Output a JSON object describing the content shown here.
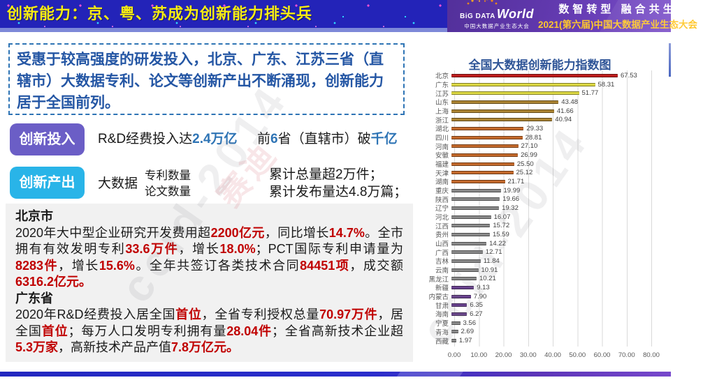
{
  "header": {
    "title": "创新能力：京、粤、苏成为创新能力排头兵",
    "logo": {
      "big": "BiG DATA",
      "world": "World",
      "sub": "中国大数据产业生态大会"
    },
    "slogan_line1": "数智转型 融合共生",
    "slogan_line2": "2021(第六届)中国大数据产业生态大会"
  },
  "intro": {
    "text": "受惠于较高强度的研发投入，北京、广东、江苏三省（直辖市）大数据专利、论文等创新产出不断涌现，创新能力居于全国前列。"
  },
  "invest": {
    "badge": "创新投入",
    "line1": [
      {
        "t": "R&D经费投入达"
      },
      {
        "t": "2.4万亿",
        "c": "hl"
      }
    ],
    "line2": [
      {
        "t": "前"
      },
      {
        "t": "6",
        "c": "hl"
      },
      {
        "t": "省（直辖市）破"
      },
      {
        "t": "千亿",
        "c": "hl"
      }
    ]
  },
  "output": {
    "badge": "创新产出",
    "prefix": "大数据",
    "items": [
      "专利数量",
      "论文数量"
    ],
    "results": [
      "累计总量超2万件；",
      "累计发布量达4.8万篇；"
    ]
  },
  "detail": {
    "beijing_title": "北京市",
    "beijing": [
      {
        "t": "2020年大中型企业研究开发费用超"
      },
      {
        "t": "2200亿元",
        "c": "red"
      },
      {
        "t": "，同比增长"
      },
      {
        "t": "14.7%",
        "c": "red"
      },
      {
        "t": "。全市拥有有效发明专利"
      },
      {
        "t": "33.6万件",
        "c": "red"
      },
      {
        "t": "，增长"
      },
      {
        "t": "18.0%",
        "c": "red"
      },
      {
        "t": "；PCT国际专利申请量为"
      },
      {
        "t": "8283件",
        "c": "red"
      },
      {
        "t": "，增长"
      },
      {
        "t": "15.6%",
        "c": "red"
      },
      {
        "t": "。全年共签订各类技术合同"
      },
      {
        "t": "84451项",
        "c": "red"
      },
      {
        "t": "，成交额"
      },
      {
        "t": "6316.2亿元。",
        "c": "red"
      }
    ],
    "guangdong_title": "广东省",
    "guangdong": [
      {
        "t": "2020年R&D经费投入居全国"
      },
      {
        "t": "首位",
        "c": "red"
      },
      {
        "t": "，全省专利授权总量"
      },
      {
        "t": "70.97万件",
        "c": "red"
      },
      {
        "t": "，居全国"
      },
      {
        "t": "首位",
        "c": "red"
      },
      {
        "t": "；每万人口发明专利拥有量"
      },
      {
        "t": "28.04件",
        "c": "red"
      },
      {
        "t": "；全省高新技术企业超"
      },
      {
        "t": "5.3万家",
        "c": "red"
      },
      {
        "t": "，高新技术产品产值"
      },
      {
        "t": "7.8万亿元。",
        "c": "red"
      }
    ]
  },
  "watermark": {
    "text": "ccid-2014",
    "brand": "赛迪"
  },
  "chart_data": {
    "type": "bar",
    "orientation": "horizontal",
    "title": "全国大数据创新能力指数图",
    "categories": [
      "北京",
      "广东",
      "江苏",
      "山东",
      "上海",
      "浙江",
      "湖北",
      "四川",
      "河南",
      "安徽",
      "福建",
      "天津",
      "湖南",
      "重庆",
      "陕西",
      "辽宁",
      "河北",
      "江西",
      "贵州",
      "山西",
      "广西",
      "吉林",
      "云南",
      "黑龙江",
      "新疆",
      "内蒙古",
      "甘肃",
      "海南",
      "宁夏",
      "青海",
      "西藏"
    ],
    "values": [
      67.53,
      58.31,
      51.77,
      43.48,
      41.66,
      40.94,
      29.33,
      28.81,
      27.1,
      26.99,
      25.5,
      25.12,
      21.71,
      19.99,
      19.66,
      19.32,
      16.07,
      15.72,
      15.59,
      14.22,
      12.71,
      11.84,
      10.91,
      10.21,
      9.13,
      7.9,
      6.35,
      6.27,
      3.56,
      2.69,
      1.97
    ],
    "value_labels": [
      "67.53",
      "58.31",
      "51.77",
      "43.48",
      "41.66",
      "40.94",
      "29.33",
      "28.81",
      "27.10",
      "26.99",
      "25.50",
      "25.12",
      "21.71",
      "19.99",
      "19.66",
      "19.32",
      "16.07",
      "15.72",
      "15.59",
      "14.22",
      "12.71",
      "11.84",
      "10.91",
      "10.21",
      "9.13",
      "7.90",
      "6.35",
      "6.27",
      "3.56",
      "2.69",
      "1.97"
    ],
    "colors": [
      "red",
      "yellow",
      "yellow",
      "gold",
      "gold",
      "gold",
      "orange",
      "orange",
      "orange",
      "orange",
      "orange",
      "orange",
      "orange",
      "grey",
      "grey",
      "grey",
      "grey",
      "grey",
      "grey",
      "grey",
      "grey",
      "grey",
      "grey",
      "grey",
      "purple",
      "purple",
      "purple",
      "purple",
      "grey",
      "grey",
      "grey"
    ],
    "palette": {
      "red": "#c00000",
      "yellow": "#e3de2e",
      "gold": "#a8791a",
      "orange": "#c55a11",
      "grey": "#808080",
      "purple": "#5b2c86"
    },
    "xticks": [
      "0.00",
      "10.00",
      "20.00",
      "30.00",
      "40.00",
      "50.00",
      "60.00",
      "70.00",
      "80.00"
    ],
    "xlim": [
      0,
      80
    ],
    "grid": true,
    "legend": false
  }
}
